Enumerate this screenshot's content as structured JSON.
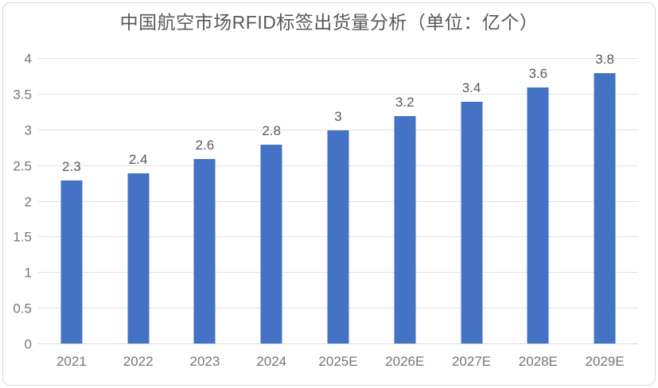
{
  "chart_data": {
    "type": "bar",
    "title": "中国航空市场RFID标签出货量分析（单位：亿个）",
    "categories": [
      "2021",
      "2022",
      "2023",
      "2024",
      "2025E",
      "2026E",
      "2027E",
      "2028E",
      "2029E"
    ],
    "values": [
      2.3,
      2.4,
      2.6,
      2.8,
      3,
      3.2,
      3.4,
      3.6,
      3.8
    ],
    "xlabel": "",
    "ylabel": "",
    "ylim": [
      0,
      4
    ],
    "yticks": [
      0,
      0.5,
      1,
      1.5,
      2,
      2.5,
      3,
      3.5,
      4
    ],
    "grid": true,
    "legend": "none",
    "data_labels": true,
    "colors": {
      "bar": "#4472c4",
      "title_text": "#595959",
      "data_label_text": "#595959",
      "axis_text": "#767676",
      "gridline": "#e2e2e2",
      "axis_line": "#d6d6d6",
      "frame_border": "#d9d9d9",
      "background": "#ffffff"
    }
  }
}
